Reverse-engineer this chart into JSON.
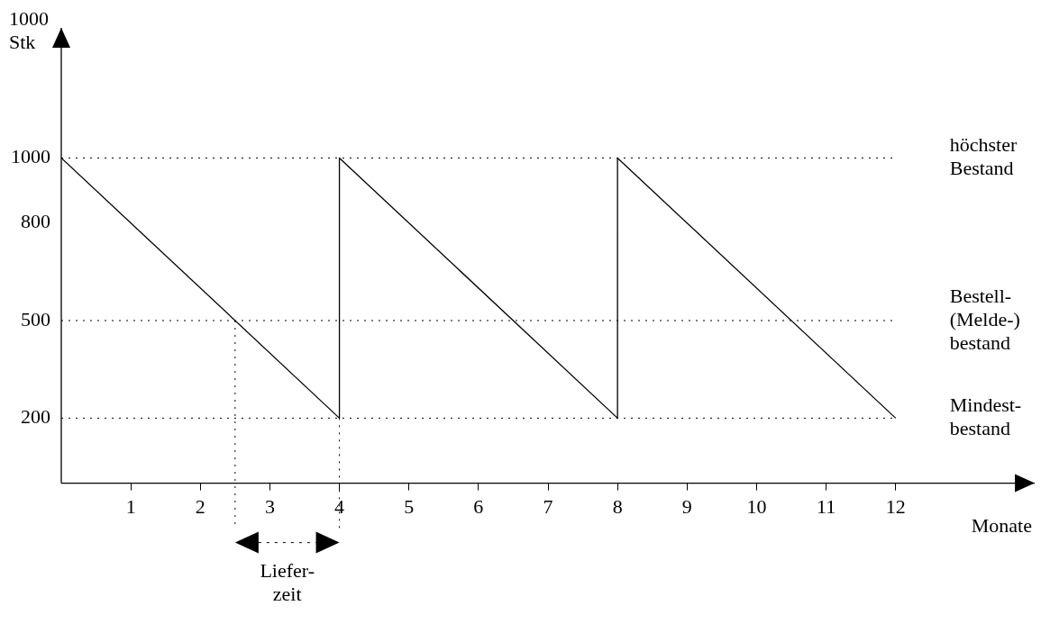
{
  "chart_data": {
    "type": "line",
    "xlabel": "Monate",
    "ylabel": "1000\nStk",
    "x": [
      0,
      4,
      4,
      8,
      8,
      12
    ],
    "series": [
      {
        "color": "#000000",
        "values": [
          1000,
          200,
          1000,
          200,
          1000,
          200
        ]
      }
    ],
    "xlim": [
      0,
      14
    ],
    "ylim": [
      0,
      1400
    ],
    "xticks": [
      1,
      2,
      3,
      4,
      5,
      6,
      7,
      8,
      9,
      10,
      11,
      12
    ],
    "yticks": [
      200,
      500,
      800,
      1000
    ],
    "ref_lines": [
      {
        "axis": "y",
        "value": 1000,
        "label": "höchster\nBestand",
        "line_style": "dotted"
      },
      {
        "axis": "y",
        "value": 500,
        "label": "Bestell-\n(Melde-)\nbestand",
        "line_style": "dotted"
      },
      {
        "axis": "y",
        "value": 200,
        "label": "Mindest-\nbestand",
        "line_style": "dotted"
      },
      {
        "axis": "x",
        "value": 2.5,
        "line_style": "dotted"
      },
      {
        "axis": "x",
        "value": 4,
        "line_style": "dotted"
      }
    ],
    "annotations": [
      "Liefer-\nzeit"
    ],
    "grid": false,
    "legend": false,
    "marker": "none",
    "line_style": "solid"
  }
}
